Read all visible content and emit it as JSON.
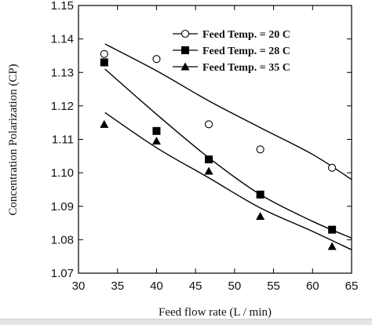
{
  "chart_data": {
    "type": "scatter",
    "xlabel": "Feed flow rate (L / min)",
    "ylabel": "Concentration Polarization (CP)",
    "xlim": [
      30,
      65
    ],
    "ylim": [
      1.07,
      1.15
    ],
    "xticks": [
      "30",
      "35",
      "40",
      "45",
      "50",
      "55",
      "60",
      "65"
    ],
    "yticks": [
      "1.07",
      "1.08",
      "1.09",
      "1.10",
      "1.11",
      "1.12",
      "1.13",
      "1.14",
      "1.15"
    ],
    "legend_position": "top-right",
    "grid": false,
    "series": [
      {
        "name": "Feed Temp. = 20 C",
        "marker": "open-circle",
        "points": [
          [
            33.3,
            1.1355
          ],
          [
            40.0,
            1.134
          ],
          [
            46.7,
            1.1145
          ],
          [
            53.3,
            1.107
          ],
          [
            62.5,
            1.1015
          ]
        ],
        "fit": [
          [
            33.4,
            1.1385
          ],
          [
            40.0,
            1.1305
          ],
          [
            46.7,
            1.1215
          ],
          [
            53.3,
            1.1135
          ],
          [
            60.0,
            1.1055
          ],
          [
            65.0,
            1.098
          ]
        ]
      },
      {
        "name": "Feed Temp. = 28 C",
        "marker": "filled-square",
        "points": [
          [
            33.3,
            1.133
          ],
          [
            40.0,
            1.1125
          ],
          [
            46.7,
            1.104
          ],
          [
            53.3,
            1.0935
          ],
          [
            62.5,
            1.083
          ]
        ],
        "fit": [
          [
            33.4,
            1.131
          ],
          [
            40.0,
            1.1175
          ],
          [
            46.7,
            1.1045
          ],
          [
            53.3,
            1.0935
          ],
          [
            60.0,
            1.0855
          ],
          [
            65.0,
            1.0805
          ]
        ]
      },
      {
        "name": "Feed Temp. = 35 C",
        "marker": "filled-triangle",
        "points": [
          [
            33.3,
            1.1145
          ],
          [
            40.0,
            1.1095
          ],
          [
            46.7,
            1.1005
          ],
          [
            53.3,
            1.087
          ],
          [
            62.5,
            1.078
          ]
        ],
        "fit": [
          [
            33.4,
            1.118
          ],
          [
            40.0,
            1.1075
          ],
          [
            46.7,
            1.0985
          ],
          [
            53.3,
            1.0895
          ],
          [
            60.0,
            1.0825
          ],
          [
            65.0,
            1.077
          ]
        ]
      }
    ]
  }
}
